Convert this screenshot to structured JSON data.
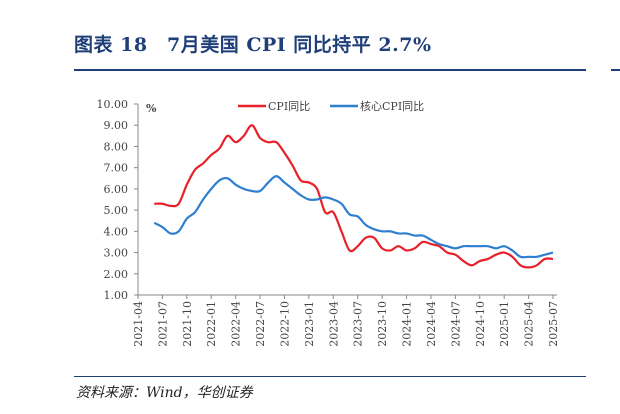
{
  "header": {
    "title": "图表 18　7月美国 CPI 同比持平 2.7%"
  },
  "footer": {
    "source": "资料来源：Wind，华创证券"
  },
  "chart_data": {
    "type": "line",
    "title": "7月美国 CPI 同比持平 2.7%",
    "ylabel": "%",
    "ylim": [
      1,
      10
    ],
    "yticks": [
      "10.00",
      "9.00",
      "8.00",
      "7.00",
      "6.00",
      "5.00",
      "4.00",
      "3.00",
      "2.00",
      "1.00"
    ],
    "xticks": [
      "2021-04",
      "2021-07",
      "2021-10",
      "2022-01",
      "2022-04",
      "2022-07",
      "2022-10",
      "2023-01",
      "2023-04",
      "2023-07",
      "2023-10",
      "2024-01",
      "2024-04",
      "2024-07",
      "2024-10",
      "2025-01",
      "2025-04",
      "2025-07"
    ],
    "x_start": "2021-06",
    "x_end": "2025-07",
    "legend_position": "top",
    "series": [
      {
        "name": "CPI同比",
        "color": "#e8202a",
        "values": [
          5.3,
          5.3,
          5.2,
          5.3,
          6.2,
          6.9,
          7.2,
          7.6,
          7.9,
          8.5,
          8.2,
          8.5,
          9.0,
          8.4,
          8.2,
          8.2,
          7.7,
          7.1,
          6.4,
          6.3,
          6.0,
          4.9,
          4.9,
          4.0,
          3.1,
          3.3,
          3.7,
          3.7,
          3.2,
          3.1,
          3.3,
          3.1,
          3.2,
          3.5,
          3.4,
          3.3,
          3.0,
          2.9,
          2.6,
          2.4,
          2.6,
          2.7,
          2.9,
          3.0,
          2.8,
          2.4,
          2.3,
          2.4,
          2.7,
          2.7
        ]
      },
      {
        "name": "核心CPI同比",
        "color": "#2f7fd0",
        "values": [
          4.4,
          4.2,
          3.9,
          4.0,
          4.6,
          4.9,
          5.5,
          6.0,
          6.4,
          6.5,
          6.2,
          6.0,
          5.9,
          5.9,
          6.3,
          6.6,
          6.3,
          6.0,
          5.7,
          5.5,
          5.5,
          5.6,
          5.5,
          5.3,
          4.8,
          4.7,
          4.3,
          4.1,
          4.0,
          4.0,
          3.9,
          3.9,
          3.8,
          3.8,
          3.6,
          3.4,
          3.3,
          3.2,
          3.3,
          3.3,
          3.3,
          3.3,
          3.2,
          3.3,
          3.1,
          2.8,
          2.8,
          2.8,
          2.9,
          3.0
        ]
      }
    ]
  }
}
